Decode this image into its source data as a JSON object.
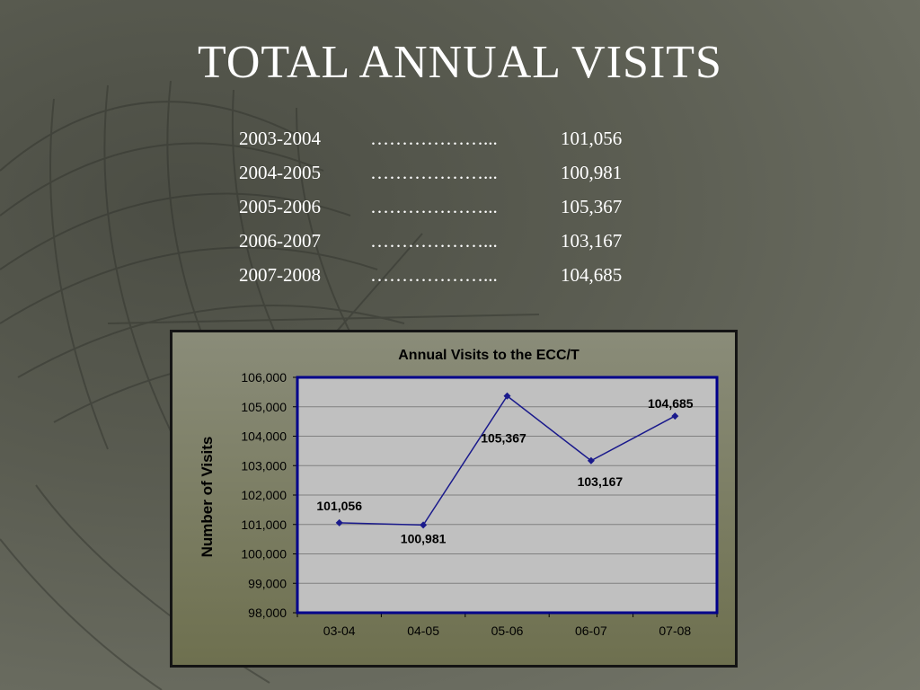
{
  "slide": {
    "title": "TOTAL ANNUAL VISITS"
  },
  "table": {
    "rows": [
      {
        "year": "2003-2004",
        "dots": "………………...",
        "value": "101,056"
      },
      {
        "year": "2004-2005",
        "dots": "………………...",
        "value": "100,981"
      },
      {
        "year": "2005-2006",
        "dots": "………………...",
        "value": "105,367"
      },
      {
        "year": "2006-2007",
        "dots": "………………...",
        "value": "103,167"
      },
      {
        "year": "2007-2008",
        "dots": "………………...",
        "value": "104,685"
      }
    ]
  },
  "colors": {
    "line": "#1a1a8c",
    "plot_background": "#c0c0c0",
    "plot_border": "#00008b",
    "gridline": "#808080"
  },
  "chart_data": {
    "type": "line",
    "title": "Annual Visits to the ECC/T",
    "xlabel": "",
    "ylabel": "Number of Visits",
    "categories": [
      "03-04",
      "04-05",
      "05-06",
      "06-07",
      "07-08"
    ],
    "values": [
      101056,
      100981,
      105367,
      103167,
      104685
    ],
    "data_labels": [
      "101,056",
      "100,981",
      "105,367",
      "103,167",
      "104,685"
    ],
    "ylim": [
      98000,
      106000
    ],
    "yticks": [
      98000,
      99000,
      100000,
      101000,
      102000,
      103000,
      104000,
      105000,
      106000
    ],
    "ytick_labels": [
      "98,000",
      "99,000",
      "100,000",
      "101,000",
      "102,000",
      "103,000",
      "104,000",
      "105,000",
      "106,000"
    ],
    "grid": true,
    "legend": "none"
  }
}
